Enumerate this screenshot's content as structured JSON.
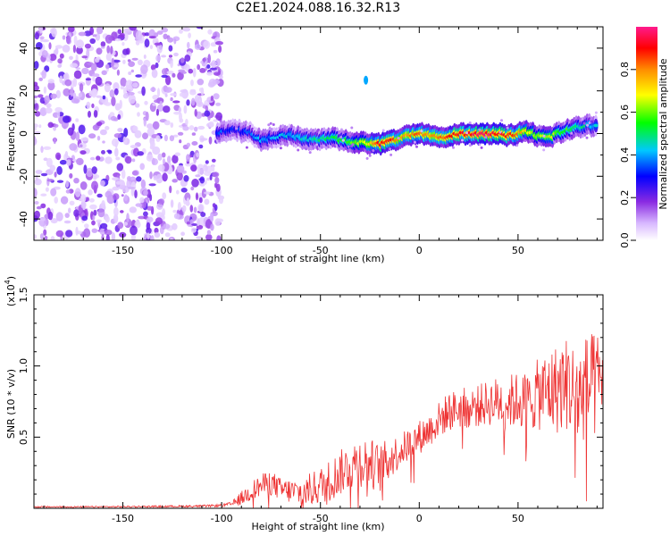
{
  "title": "C2E1.2024.088.16.32.R13",
  "chart_data": [
    {
      "type": "heatmap",
      "title": "C2E1.2024.088.16.32.R13",
      "xlabel": "Height of straight line (km)",
      "ylabel": "Frequency (Hz)",
      "xlim": [
        -195,
        93
      ],
      "ylim": [
        -50,
        50
      ],
      "xticks": [
        -150,
        -100,
        -50,
        0,
        50
      ],
      "yticks": [
        -40,
        -20,
        0,
        20,
        40
      ],
      "colorbar": {
        "label": "Normalized spectral amplitude",
        "range": [
          0.0,
          1.0
        ],
        "ticks": [
          0.0,
          0.2,
          0.4,
          0.6,
          0.8
        ],
        "tick_labels": [
          "0.0",
          "0.2",
          "0.4",
          "0.6",
          "0.8"
        ],
        "colormap": "rainbow"
      },
      "noise_region": {
        "x_from": -195,
        "x_to": -100,
        "amplitude": "low, scattered (violet)"
      },
      "signal_ridge": {
        "x": [
          -102,
          -95,
          -90,
          -85,
          -80,
          -75,
          -70,
          -65,
          -60,
          -55,
          -50,
          -45,
          -40,
          -35,
          -30,
          -25,
          -20,
          -15,
          -10,
          -5,
          0,
          5,
          10,
          15,
          20,
          25,
          30,
          35,
          40,
          45,
          50,
          55,
          60,
          65,
          70,
          75,
          80,
          85,
          90
        ],
        "frequency": [
          0,
          2,
          1,
          0,
          -3,
          -2,
          -1,
          -1,
          -2,
          -3,
          -3,
          -2,
          -3,
          -4,
          -4,
          -5,
          -5,
          -4,
          -2,
          -1,
          0,
          -1,
          -2,
          -1,
          0,
          0,
          0,
          0,
          0,
          -1,
          0,
          1,
          -1,
          -2,
          0,
          2,
          3,
          4,
          3
        ],
        "amplitude": [
          0.35,
          0.3,
          0.3,
          0.35,
          0.4,
          0.38,
          0.4,
          0.42,
          0.45,
          0.45,
          0.5,
          0.5,
          0.55,
          0.6,
          0.65,
          0.7,
          0.9,
          0.9,
          0.75,
          0.8,
          0.85,
          0.8,
          0.8,
          0.85,
          0.9,
          0.9,
          0.95,
          0.95,
          0.9,
          0.9,
          0.8,
          0.7,
          0.6,
          0.65,
          0.6,
          0.55,
          0.5,
          0.45,
          0.4
        ]
      },
      "annotations": [
        {
          "x": -27,
          "frequency": 25,
          "amplitude": 0.4
        }
      ]
    },
    {
      "type": "line",
      "xlabel": "Height of straight line (km)",
      "ylabel": "SNR (10 * v/v)",
      "multiplier_label": "(x10",
      "multiplier_exponent": "4",
      "xlim": [
        -195,
        93
      ],
      "ylim": [
        0,
        15000
      ],
      "xticks": [
        -150,
        -100,
        -50,
        0,
        50
      ],
      "yticks": [
        5000,
        10000,
        15000
      ],
      "ytick_labels": [
        "0.5",
        "1.0",
        "1.5"
      ],
      "color": "#ee3333",
      "series": [
        {
          "name": "SNR",
          "x": [
            -195,
            -170,
            -140,
            -110,
            -100,
            -95,
            -90,
            -85,
            -80,
            -75,
            -70,
            -65,
            -60,
            -55,
            -50,
            -45,
            -40,
            -35,
            -30,
            -25,
            -20,
            -15,
            -10,
            -5,
            0,
            5,
            10,
            15,
            20,
            25,
            30,
            35,
            40,
            45,
            50,
            55,
            60,
            65,
            70,
            75,
            80,
            85,
            90,
            93
          ],
          "y": [
            100,
            100,
            120,
            150,
            200,
            300,
            700,
            1200,
            1600,
            1800,
            1300,
            1200,
            1100,
            1300,
            1600,
            2000,
            2500,
            3000,
            3300,
            3200,
            2800,
            3500,
            4000,
            4500,
            5000,
            5500,
            6200,
            6800,
            7000,
            7100,
            7200,
            7400,
            7500,
            7500,
            7600,
            7500,
            8000,
            8200,
            8400,
            8800,
            7800,
            8500,
            8600,
            8800
          ],
          "spread": [
            50,
            50,
            60,
            80,
            100,
            150,
            500,
            700,
            800,
            900,
            800,
            900,
            1000,
            1200,
            1300,
            1500,
            1600,
            1700,
            1800,
            1800,
            1700,
            1500,
            1200,
            1200,
            1200,
            1200,
            1300,
            1400,
            1400,
            1500,
            1500,
            1600,
            1800,
            1900,
            2000,
            2100,
            2500,
            3000,
            3200,
            3400,
            3600,
            3800,
            3800,
            3800
          ]
        }
      ]
    }
  ]
}
